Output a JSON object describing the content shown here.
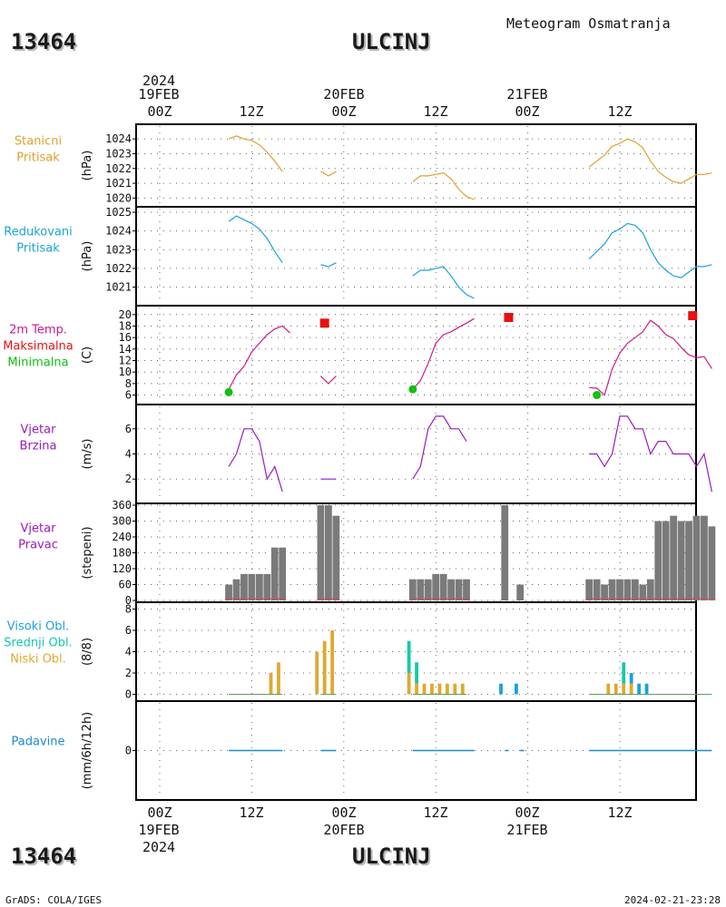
{
  "header": {
    "station_id": "13464",
    "station_name": "ULCINJ",
    "subtitle": "Meteogram Osmatranja"
  },
  "time_axis": {
    "labels_top": [
      "00Z",
      "12Z",
      "00Z",
      "12Z",
      "00Z",
      "12Z"
    ],
    "labels_bottom": [
      "00Z",
      "12Z",
      "00Z",
      "12Z",
      "00Z",
      "12Z"
    ],
    "dates": [
      "19FEB",
      "20FEB",
      "21FEB"
    ],
    "year": "2024"
  },
  "footer": {
    "left": "GrADS: COLA/IGES",
    "right": "2024-02-21-23:28"
  },
  "colors": {
    "pressure": "#e0a030",
    "reduced": "#1aa3d8",
    "tmax": "#e81010",
    "tmin": "#10c010",
    "temp": "#cc1a8a",
    "wind": "#9a1ac0",
    "bar": "#7a7a7a",
    "dir_base": "#d05050",
    "high": "#1aa0e0",
    "mid": "#18c8a8",
    "low": "#e0a830",
    "precip": "#1a8acc"
  },
  "chart_data": [
    {
      "type": "line",
      "name": "Stanicni Pritisak",
      "labels": [
        "Stanicni",
        "Pritisak"
      ],
      "ylabel": "(hPa)",
      "ylim": [
        1019.9,
        1024.5
      ],
      "yticks": [
        1020,
        1021,
        1022,
        1023,
        1024
      ],
      "x_unit": "hours since 19FEB 00Z",
      "segments": [
        [
          [
            9,
            1024.0
          ],
          [
            10,
            1024.2
          ],
          [
            11,
            1024.0
          ],
          [
            12,
            1023.9
          ],
          [
            13,
            1023.6
          ],
          [
            14,
            1023.1
          ],
          [
            15,
            1022.5
          ],
          [
            16,
            1021.8
          ]
        ],
        [
          [
            21,
            1021.8
          ],
          [
            22,
            1021.5
          ],
          [
            23,
            1021.8
          ]
        ],
        [
          [
            33,
            1021.1
          ],
          [
            34,
            1021.5
          ],
          [
            35,
            1021.5
          ],
          [
            36,
            1021.6
          ],
          [
            37,
            1021.7
          ],
          [
            38,
            1021.3
          ],
          [
            39,
            1020.6
          ],
          [
            40,
            1020.1
          ],
          [
            41,
            1019.9
          ]
        ],
        [
          [
            56,
            1022.1
          ],
          [
            57,
            1022.5
          ],
          [
            58,
            1022.9
          ],
          [
            59,
            1023.5
          ],
          [
            60,
            1023.7
          ],
          [
            61,
            1024.0
          ],
          [
            62,
            1023.8
          ],
          [
            63,
            1023.4
          ],
          [
            64,
            1022.5
          ],
          [
            65,
            1021.8
          ],
          [
            66,
            1021.4
          ],
          [
            67,
            1021.1
          ],
          [
            68,
            1021.0
          ],
          [
            69,
            1021.3
          ],
          [
            70,
            1021.6
          ],
          [
            71,
            1021.6
          ],
          [
            72,
            1021.7
          ]
        ]
      ]
    },
    {
      "type": "line",
      "name": "Redukovani Pritisak",
      "labels": [
        "Redukovani",
        "Pritisak"
      ],
      "ylabel": "(hPa)",
      "ylim": [
        1020.3,
        1025.0
      ],
      "yticks": [
        1021,
        1022,
        1023,
        1024,
        1025
      ],
      "segments": [
        [
          [
            9,
            1024.5
          ],
          [
            10,
            1024.8
          ],
          [
            11,
            1024.6
          ],
          [
            12,
            1024.4
          ],
          [
            13,
            1024.1
          ],
          [
            14,
            1023.6
          ],
          [
            15,
            1022.9
          ],
          [
            16,
            1022.3
          ]
        ],
        [
          [
            21,
            1022.2
          ],
          [
            22,
            1022.1
          ],
          [
            23,
            1022.3
          ]
        ],
        [
          [
            33,
            1021.6
          ],
          [
            34,
            1021.9
          ],
          [
            35,
            1021.9
          ],
          [
            36,
            1022.0
          ],
          [
            37,
            1022.1
          ],
          [
            38,
            1021.6
          ],
          [
            39,
            1021.0
          ],
          [
            40,
            1020.6
          ],
          [
            41,
            1020.4
          ]
        ],
        [
          [
            56,
            1022.5
          ],
          [
            57,
            1022.9
          ],
          [
            58,
            1023.3
          ],
          [
            59,
            1023.9
          ],
          [
            60,
            1024.1
          ],
          [
            61,
            1024.4
          ],
          [
            62,
            1024.3
          ],
          [
            63,
            1023.9
          ],
          [
            64,
            1023.0
          ],
          [
            65,
            1022.3
          ],
          [
            66,
            1021.9
          ],
          [
            67,
            1021.6
          ],
          [
            68,
            1021.5
          ],
          [
            69,
            1021.8
          ],
          [
            70,
            1022.1
          ],
          [
            71,
            1022.1
          ],
          [
            72,
            1022.2
          ]
        ]
      ]
    },
    {
      "type": "line",
      "name": "2m Temp.",
      "labels": [
        "2m Temp.",
        "Maksimalna",
        "Minimalna"
      ],
      "ylabel": "(C)",
      "ylim": [
        5.3,
        20.6
      ],
      "yticks": [
        6,
        8,
        10,
        12,
        14,
        16,
        18,
        20
      ],
      "segments": [
        [
          [
            9,
            7.0
          ],
          [
            10,
            9.5
          ],
          [
            11,
            11.0
          ],
          [
            12,
            13.5
          ],
          [
            13,
            15.0
          ],
          [
            14,
            16.5
          ],
          [
            15,
            17.5
          ],
          [
            16,
            18.0
          ],
          [
            17,
            16.8
          ]
        ],
        [
          [
            21,
            9.3
          ],
          [
            22,
            8.0
          ],
          [
            23,
            9.3
          ]
        ],
        [
          [
            33,
            7.0
          ],
          [
            34,
            8.5
          ],
          [
            35,
            11.5
          ],
          [
            36,
            15.0
          ],
          [
            37,
            16.5
          ],
          [
            38,
            17.0
          ],
          [
            39,
            17.8
          ],
          [
            40,
            18.5
          ],
          [
            41,
            19.3
          ]
        ],
        [
          [
            56,
            7.3
          ],
          [
            57,
            7.2
          ],
          [
            58,
            6.0
          ],
          [
            59,
            10.5
          ],
          [
            60,
            13.3
          ],
          [
            61,
            15.0
          ],
          [
            62,
            16.0
          ],
          [
            63,
            17.0
          ],
          [
            64,
            19.0
          ],
          [
            65,
            18.0
          ],
          [
            66,
            16.5
          ],
          [
            67,
            15.8
          ],
          [
            68,
            14.3
          ],
          [
            69,
            13.0
          ],
          [
            70,
            12.5
          ],
          [
            71,
            12.7
          ],
          [
            72,
            10.6
          ]
        ]
      ],
      "max_points": [
        [
          21.5,
          18.5
        ],
        [
          45.5,
          19.5
        ],
        [
          69.5,
          19.8
        ]
      ],
      "min_points": [
        [
          9,
          6.5
        ],
        [
          33,
          7.0
        ],
        [
          57,
          6.0
        ]
      ]
    },
    {
      "type": "line",
      "name": "Vjetar Brzina",
      "labels": [
        "Vjetar",
        "Brzina"
      ],
      "ylabel": "(m/s)",
      "ylim": [
        0.5,
        7.5
      ],
      "yticks": [
        2,
        4,
        6
      ],
      "segments": [
        [
          [
            9,
            3
          ],
          [
            10,
            4
          ],
          [
            11,
            6
          ],
          [
            12,
            6
          ],
          [
            13,
            5
          ],
          [
            14,
            2
          ],
          [
            15,
            3
          ],
          [
            16,
            1
          ]
        ],
        [
          [
            21,
            2
          ],
          [
            22,
            2
          ],
          [
            23,
            2
          ]
        ],
        [
          [
            33,
            2
          ],
          [
            34,
            3
          ],
          [
            35,
            6
          ],
          [
            36,
            7
          ],
          [
            37,
            7
          ],
          [
            38,
            6
          ],
          [
            39,
            6
          ],
          [
            40,
            5
          ]
        ],
        [
          [
            56,
            4
          ],
          [
            57,
            4
          ],
          [
            58,
            3
          ],
          [
            59,
            4
          ],
          [
            60,
            7
          ],
          [
            61,
            7
          ],
          [
            62,
            6
          ],
          [
            63,
            6
          ],
          [
            64,
            4
          ],
          [
            65,
            5
          ],
          [
            66,
            5
          ],
          [
            67,
            4
          ],
          [
            68,
            4
          ],
          [
            69,
            4
          ],
          [
            70,
            3
          ],
          [
            71,
            4
          ],
          [
            72,
            1
          ]
        ]
      ]
    },
    {
      "type": "bar",
      "name": "Vjetar Pravac",
      "labels": [
        "Vjetar",
        "Pravac"
      ],
      "ylabel": "(stepeni)",
      "ylim": [
        0,
        360
      ],
      "yticks": [
        0,
        60,
        120,
        180,
        240,
        300,
        360
      ],
      "x": [
        9,
        10,
        11,
        12,
        13,
        14,
        15,
        16,
        21,
        22,
        23,
        33,
        34,
        35,
        36,
        37,
        38,
        39,
        40,
        45,
        47,
        56,
        57,
        58,
        59,
        60,
        61,
        62,
        63,
        64,
        65,
        66,
        67,
        68,
        69,
        70,
        71,
        72
      ],
      "values": [
        60,
        80,
        100,
        100,
        100,
        100,
        200,
        200,
        360,
        360,
        320,
        80,
        80,
        80,
        100,
        100,
        80,
        80,
        80,
        360,
        60,
        80,
        80,
        60,
        80,
        80,
        80,
        80,
        60,
        80,
        300,
        300,
        320,
        300,
        300,
        320,
        320,
        280
      ]
    },
    {
      "type": "bar",
      "name": "Oblacnost",
      "labels": [
        "Visoki Obl.",
        "Srednji Obl.",
        "Niski Obl."
      ],
      "ylabel": "(8/8)",
      "ylim": [
        -0.3,
        8.3
      ],
      "yticks": [
        0,
        2,
        4,
        6,
        8
      ],
      "low": {
        "x": [
          14.5,
          15.5,
          20.5,
          21.5,
          22.5,
          32.5,
          33.5,
          34.5,
          35.5,
          36.5,
          37.5,
          38.5,
          39.5,
          58.5,
          59.5,
          60.5,
          61.5
        ],
        "values": [
          2,
          3,
          4,
          5,
          6,
          2,
          1,
          1,
          1,
          1,
          1,
          1,
          1,
          1,
          1,
          1,
          1
        ]
      },
      "mid": {
        "x": [
          32.5,
          33.5,
          60.5
        ],
        "values": [
          3,
          2,
          2
        ]
      },
      "high": {
        "x": [
          44.5,
          46.5,
          61.5,
          62.5,
          63.5
        ],
        "values": [
          1,
          1,
          1,
          1,
          1
        ]
      }
    },
    {
      "type": "line",
      "name": "Padavine",
      "labels": [
        "Padavine"
      ],
      "ylabel": "(mm/6h/12h)",
      "ylim": [
        -0.5,
        0.5
      ],
      "yticks": [
        0
      ],
      "segments": [
        [
          [
            9,
            0
          ],
          [
            16,
            0
          ]
        ],
        [
          [
            21,
            0
          ],
          [
            23,
            0
          ]
        ],
        [
          [
            33,
            0
          ],
          [
            41,
            0
          ]
        ],
        [
          [
            45,
            0
          ],
          [
            45.5,
            0
          ]
        ],
        [
          [
            47,
            0
          ],
          [
            47.5,
            0
          ]
        ],
        [
          [
            56,
            0
          ],
          [
            72,
            0
          ]
        ]
      ]
    }
  ]
}
